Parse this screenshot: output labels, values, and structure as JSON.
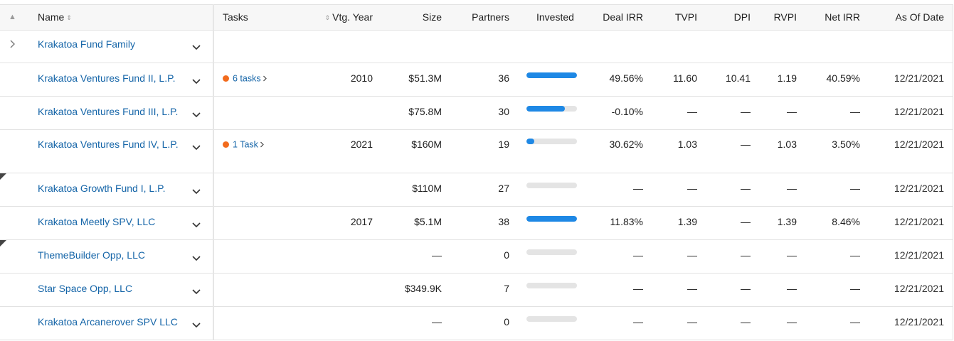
{
  "columns": {
    "name": "Name",
    "tasks": "Tasks",
    "vtg_year": "Vtg. Year",
    "size": "Size",
    "partners": "Partners",
    "invested": "Invested",
    "deal_irr": "Deal IRR",
    "tvpi": "TVPI",
    "dpi": "DPI",
    "rvpi": "RVPI",
    "net_irr": "Net IRR",
    "as_of_date": "As Of Date"
  },
  "colors": {
    "link": "#1565a8",
    "bar_fill": "#1e88e5",
    "bar_track": "#e4e4e4",
    "task_dot": "#f26b1d"
  },
  "family_row": {
    "name": "Krakatoa Fund Family"
  },
  "rows": [
    {
      "name": "Krakatoa Ventures Fund II, L.P.",
      "tasks": "6 tasks",
      "vtg_year": "2010",
      "size": "$51.3M",
      "partners": "36",
      "invested_fraction": 1.0,
      "deal_irr": "49.56%",
      "tvpi": "11.60",
      "dpi": "10.41",
      "rvpi": "1.19",
      "net_irr": "40.59%",
      "as_of_date": "12/21/2021"
    },
    {
      "name": "Krakatoa Ventures Fund III, L.P.",
      "tasks": "",
      "vtg_year": "",
      "size": "$75.8M",
      "partners": "30",
      "invested_fraction": 0.76,
      "deal_irr": "-0.10%",
      "tvpi": "—",
      "dpi": "—",
      "rvpi": "—",
      "net_irr": "—",
      "as_of_date": "12/21/2021"
    },
    {
      "name": "Krakatoa Ventures Fund IV, L.P.",
      "tasks": "1 Task",
      "vtg_year": "2021",
      "size": "$160M",
      "partners": "19",
      "invested_fraction": 0.15,
      "deal_irr": "30.62%",
      "tvpi": "1.03",
      "dpi": "—",
      "rvpi": "1.03",
      "net_irr": "3.50%",
      "as_of_date": "12/21/2021"
    },
    {
      "name": "Krakatoa Growth Fund I, L.P.",
      "tasks": "",
      "vtg_year": "",
      "size": "$110M",
      "partners": "27",
      "invested_fraction": 0,
      "deal_irr": "—",
      "tvpi": "—",
      "dpi": "—",
      "rvpi": "—",
      "net_irr": "—",
      "as_of_date": "12/21/2021"
    },
    {
      "name": "Krakatoa Meetly SPV, LLC",
      "tasks": "",
      "vtg_year": "2017",
      "size": "$5.1M",
      "partners": "38",
      "invested_fraction": 1.0,
      "deal_irr": "11.83%",
      "tvpi": "1.39",
      "dpi": "—",
      "rvpi": "1.39",
      "net_irr": "8.46%",
      "as_of_date": "12/21/2021"
    },
    {
      "name": "ThemeBuilder Opp, LLC",
      "tasks": "",
      "vtg_year": "",
      "size": "—",
      "partners": "0",
      "invested_fraction": 0,
      "deal_irr": "—",
      "tvpi": "—",
      "dpi": "—",
      "rvpi": "—",
      "net_irr": "—",
      "as_of_date": "12/21/2021"
    },
    {
      "name": "Star Space Opp, LLC",
      "tasks": "",
      "vtg_year": "",
      "size": "$349.9K",
      "partners": "7",
      "invested_fraction": 0,
      "deal_irr": "—",
      "tvpi": "—",
      "dpi": "—",
      "rvpi": "—",
      "net_irr": "—",
      "as_of_date": "12/21/2021"
    },
    {
      "name": "Krakatoa Arcanerover SPV LLC",
      "tasks": "",
      "vtg_year": "",
      "size": "—",
      "partners": "0",
      "invested_fraction": 0,
      "deal_irr": "—",
      "tvpi": "—",
      "dpi": "—",
      "rvpi": "—",
      "net_irr": "—",
      "as_of_date": "12/21/2021"
    }
  ]
}
